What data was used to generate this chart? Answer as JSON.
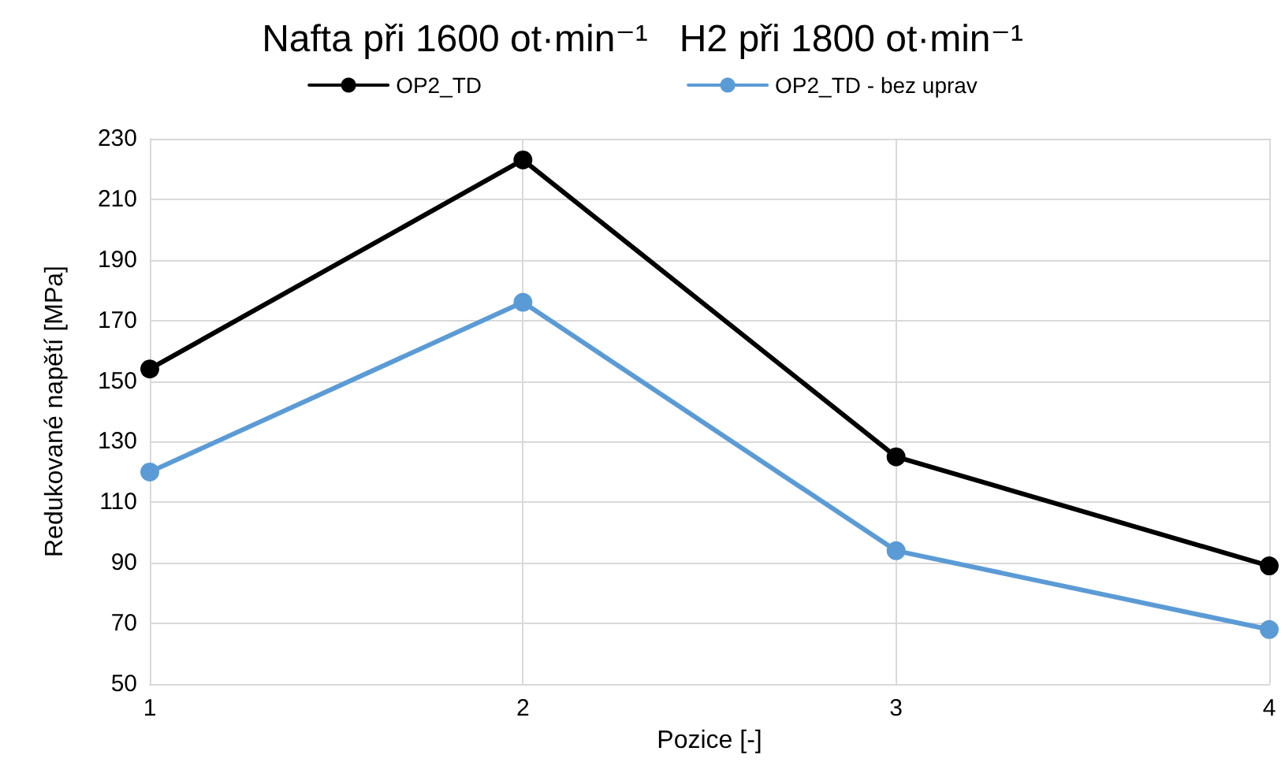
{
  "chart_data": {
    "type": "line",
    "title": "Nafta při 1600 ot·min⁻¹   H2 při 1800 ot·min⁻¹",
    "xlabel": "Pozice [-]",
    "ylabel": "Redukované napětí [MPa]",
    "x": [
      1,
      2,
      3,
      4
    ],
    "series": [
      {
        "name": "OP2_TD",
        "color": "#000000",
        "values": [
          154,
          223,
          125,
          89
        ]
      },
      {
        "name": "OP2_TD - bez uprav",
        "color": "#5b9bd5",
        "values": [
          120,
          176,
          94,
          68
        ]
      }
    ],
    "xlim": [
      1,
      4
    ],
    "xticks": [
      1,
      2,
      3,
      4
    ],
    "ylim": [
      50,
      230
    ],
    "yticks": [
      50,
      70,
      90,
      110,
      130,
      150,
      170,
      190,
      210,
      230
    ],
    "grid": true,
    "legend": "top",
    "marker": "circle",
    "line_style": "solid"
  }
}
